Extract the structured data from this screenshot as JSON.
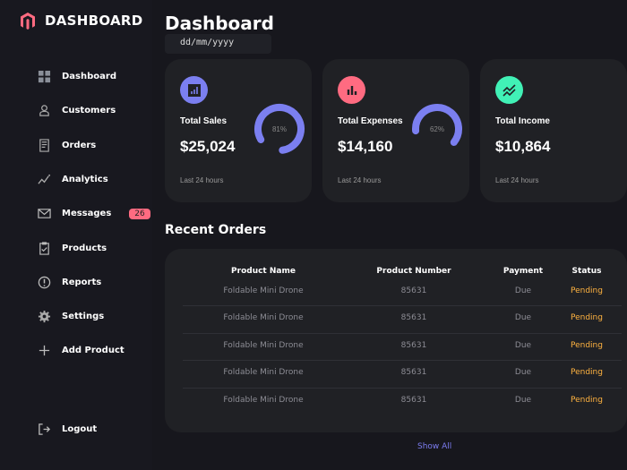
{
  "brand": {
    "name": "DASHBOARD"
  },
  "nav": [
    {
      "label": "Dashboard",
      "icon": "grid-icon"
    },
    {
      "label": "Customers",
      "icon": "person-icon"
    },
    {
      "label": "Orders",
      "icon": "receipt-icon"
    },
    {
      "label": "Analytics",
      "icon": "analytics-icon"
    },
    {
      "label": "Messages",
      "icon": "mail-icon",
      "badge": "26"
    },
    {
      "label": "Products",
      "icon": "clipboard-icon"
    },
    {
      "label": "Reports",
      "icon": "alert-icon"
    },
    {
      "label": "Settings",
      "icon": "gear-icon"
    },
    {
      "label": "Add Product",
      "icon": "plus-icon"
    }
  ],
  "logout": "Logout",
  "page_title": "Dashboard",
  "date_placeholder": "dd/mm/yyyy",
  "cards": [
    {
      "title": "Total Sales",
      "value": "$25,024",
      "percent": "81%",
      "pct": 81,
      "footer": "Last 24 hours",
      "color": "#7b7ff0"
    },
    {
      "title": "Total Expenses",
      "value": "$14,160",
      "percent": "62%",
      "pct": 62,
      "footer": "Last 24 hours",
      "color": "#ff6b81"
    },
    {
      "title": "Total Income",
      "value": "$10,864",
      "percent": "",
      "pct": 0,
      "footer": "Last 24 hours",
      "color": "#41f1b6"
    }
  ],
  "recent_orders": {
    "title": "Recent Orders",
    "headers": [
      "Product Name",
      "Product Number",
      "Payment",
      "Status"
    ],
    "rows": [
      [
        "Foldable Mini Drone",
        "85631",
        "Due",
        "Pending"
      ],
      [
        "Foldable Mini Drone",
        "85631",
        "Due",
        "Pending"
      ],
      [
        "Foldable Mini Drone",
        "85631",
        "Due",
        "Pending"
      ],
      [
        "Foldable Mini Drone",
        "85631",
        "Due",
        "Pending"
      ],
      [
        "Foldable Mini Drone",
        "85631",
        "Due",
        "Pending"
      ]
    ],
    "show_all": "Show All"
  }
}
